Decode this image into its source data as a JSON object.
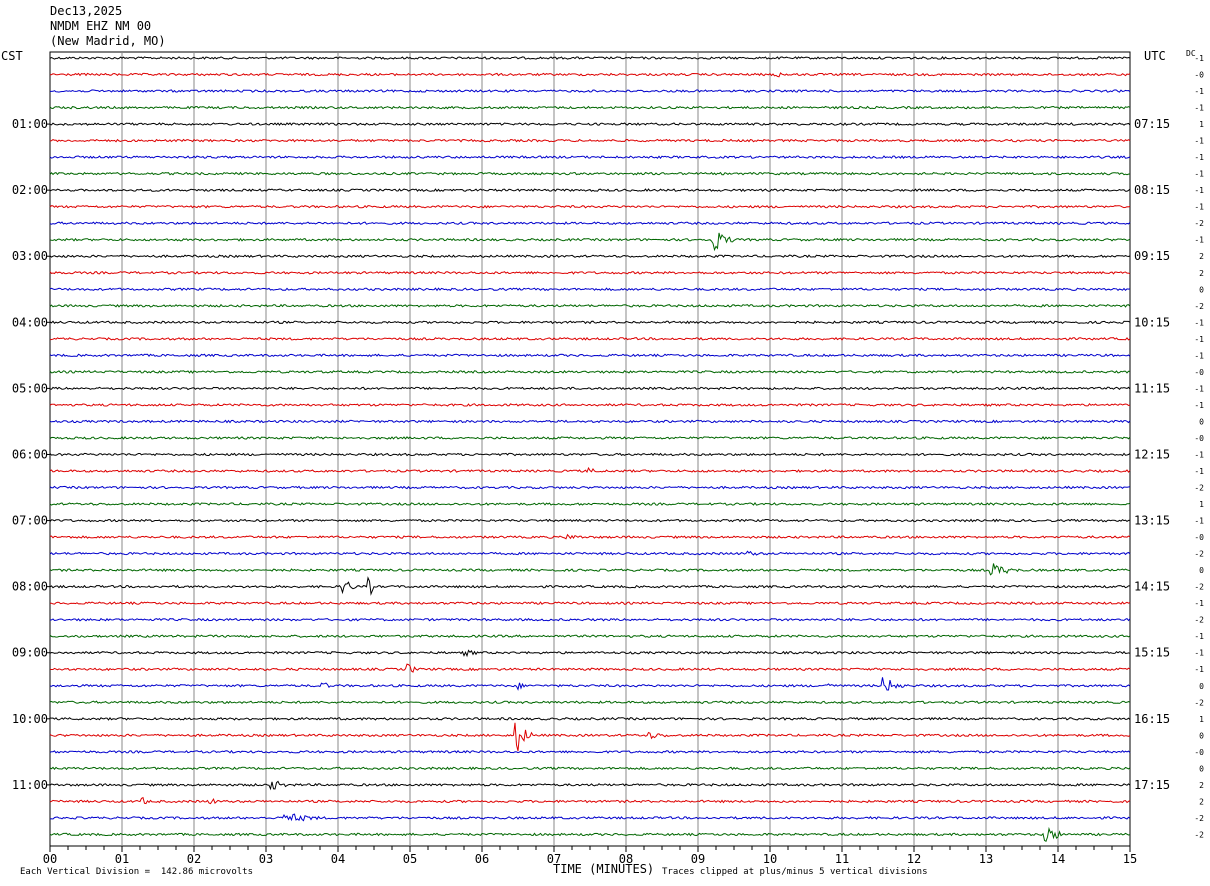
{
  "header": {
    "date": "Dec13,2025",
    "station": "NMDM EHZ NM 00",
    "location": "(New Madrid, MO)"
  },
  "left_zone_label": "CST",
  "right_zone_label": "UTC",
  "dc_label": "DC",
  "footer": {
    "scale_note": "Each Vertical Division =  142.86 microvolts",
    "xlabel": "TIME (MINUTES)",
    "clip_note": "Traces clipped at plus/minus 5 vertical divisions"
  },
  "colors": {
    "trace_cycle": [
      "#000000",
      "#dd0000",
      "#0000cc",
      "#006600"
    ],
    "grid": "#888888"
  },
  "chart_data": {
    "type": "line",
    "title": "NMDM EHZ NM 00 (New Madrid, MO) Dec13,2025",
    "xlabel": "TIME (MINUTES)",
    "xlim": [
      0,
      15
    ],
    "x_ticks": [
      "00",
      "01",
      "02",
      "03",
      "04",
      "05",
      "06",
      "07",
      "08",
      "09",
      "10",
      "11",
      "12",
      "13",
      "14",
      "15"
    ],
    "rows_per_hour": 4,
    "row_count": 48,
    "cst_hour_labels": [
      "01:00",
      "02:00",
      "03:00",
      "04:00",
      "05:00",
      "06:00",
      "07:00",
      "08:00",
      "09:00",
      "10:00",
      "11:00"
    ],
    "utc_hour_labels": [
      "07:15",
      "08:15",
      "09:15",
      "10:15",
      "11:15",
      "12:15",
      "13:15",
      "14:15",
      "15:15",
      "16:15",
      "17:15"
    ],
    "hour_label_start_row": 4,
    "dc_offsets": [
      "-1",
      "-0",
      "-1",
      "-1",
      "1",
      "-1",
      "-1",
      "-1",
      "-1",
      "-1",
      "-2",
      "-1",
      "2",
      "2",
      "0",
      "-2",
      "-1",
      "-1",
      "-1",
      "-0",
      "-1",
      "-1",
      "0",
      "-0",
      "-1",
      "-1",
      "-2",
      "1",
      "-1",
      "-0",
      "-2",
      "0",
      "-2",
      "-1",
      "-2",
      "-1",
      "-1",
      "-1",
      "0",
      "-2",
      "1",
      "0",
      "-0",
      "0",
      "2",
      "2",
      "-2",
      "-2"
    ],
    "events": [
      {
        "row": 11,
        "minute": 9.2,
        "amp": 14,
        "dur": 0.35
      },
      {
        "row": 32,
        "minute": 4.1,
        "amp": 9,
        "dur": 0.2
      },
      {
        "row": 32,
        "minute": 4.45,
        "amp": 9,
        "dur": 0.1
      },
      {
        "row": 31,
        "minute": 13.1,
        "amp": 7,
        "dur": 0.5
      },
      {
        "row": 37,
        "minute": 5.0,
        "amp": 6,
        "dur": 0.15
      },
      {
        "row": 38,
        "minute": 11.6,
        "amp": 9,
        "dur": 0.35
      },
      {
        "row": 38,
        "minute": 3.8,
        "amp": 4,
        "dur": 0.2
      },
      {
        "row": 38,
        "minute": 6.5,
        "amp": 4,
        "dur": 0.2
      },
      {
        "row": 38,
        "minute": 10.8,
        "amp": 4,
        "dur": 0.2
      },
      {
        "row": 41,
        "minute": 6.5,
        "amp": 16,
        "dur": 0.25
      },
      {
        "row": 41,
        "minute": 8.3,
        "amp": 4,
        "dur": 0.6
      },
      {
        "row": 44,
        "minute": 3.1,
        "amp": 5,
        "dur": 0.4
      },
      {
        "row": 45,
        "minute": 1.3,
        "amp": 4,
        "dur": 0.2
      },
      {
        "row": 45,
        "minute": 2.25,
        "amp": 4,
        "dur": 0.15
      },
      {
        "row": 46,
        "minute": 3.3,
        "amp": 5,
        "dur": 0.8
      },
      {
        "row": 47,
        "minute": 13.85,
        "amp": 10,
        "dur": 0.3
      },
      {
        "row": 1,
        "minute": 10.1,
        "amp": 3,
        "dur": 0.4
      },
      {
        "row": 25,
        "minute": 7.5,
        "amp": 3,
        "dur": 0.4
      },
      {
        "row": 29,
        "minute": 7.2,
        "amp": 3,
        "dur": 0.5
      },
      {
        "row": 30,
        "minute": 9.7,
        "amp": 3,
        "dur": 0.4
      },
      {
        "row": 36,
        "minute": 5.8,
        "amp": 3,
        "dur": 0.5
      }
    ]
  }
}
